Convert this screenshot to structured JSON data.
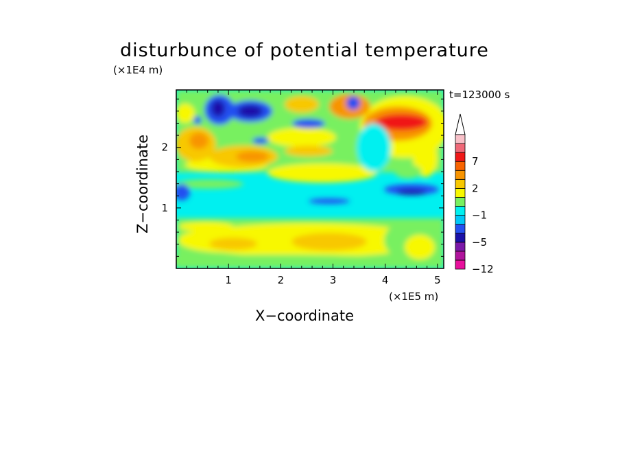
{
  "chart_data": {
    "type": "heatmap",
    "title": "disturbunce of potential temperature",
    "xlabel": "X−coordinate",
    "ylabel": "Z−coordinate",
    "x_scale_label": "(×1E5 m)",
    "y_scale_label": "(×1E4 m)",
    "time_label": "t=123000 s",
    "xlim": [
      0,
      5.12
    ],
    "ylim": [
      0,
      2.95
    ],
    "x_ticks": [
      1,
      2,
      3,
      4,
      5
    ],
    "y_ticks": [
      1,
      2
    ],
    "x_tick_labels": [
      "1",
      "2",
      "3",
      "4",
      "5"
    ],
    "y_tick_labels": [
      "1",
      "2"
    ],
    "colorbar": {
      "labeled_levels": [
        "−12",
        "−5",
        "−1",
        "2",
        "7"
      ],
      "colors": [
        "#e8109c",
        "#b0149c",
        "#7b18a8",
        "#1a10a8",
        "#2450f0",
        "#00c8f8",
        "#00f0f0",
        "#78f060",
        "#f8f800",
        "#f8c800",
        "#f89400",
        "#f86400",
        "#f01818",
        "#f06878",
        "#f8c0c8"
      ]
    },
    "field_regions": [
      {
        "x": 1.4,
        "z": 2.6,
        "level": -5
      },
      {
        "x": 0.7,
        "z": 2.6,
        "level": -3
      },
      {
        "x": 2.0,
        "z": 2.1,
        "level": 3
      },
      {
        "x": 1.5,
        "z": 1.85,
        "level": 4
      },
      {
        "x": 4.3,
        "z": 2.5,
        "level": 6
      },
      {
        "x": 4.5,
        "z": 1.3,
        "level": -3
      },
      {
        "x": 2.5,
        "z": 1.0,
        "level": -1
      },
      {
        "x": 2.8,
        "z": 0.45,
        "level": 3
      },
      {
        "x": 0.5,
        "z": 0.5,
        "level": 2
      }
    ]
  }
}
